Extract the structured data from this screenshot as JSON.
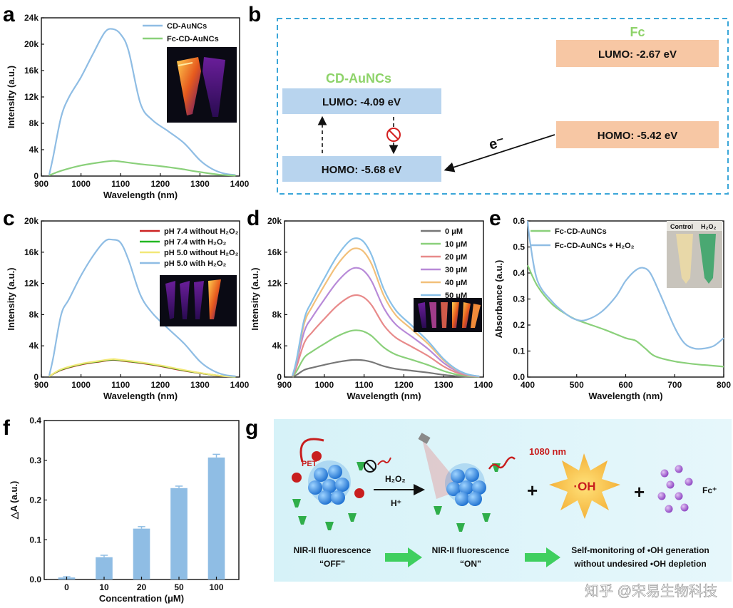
{
  "panel_labels": {
    "a": "a",
    "b": "b",
    "c": "c",
    "d": "d",
    "e": "e",
    "f": "f",
    "g": "g"
  },
  "colors": {
    "blue": "#8fbde4",
    "green": "#8ad07a",
    "red": "#cc2222",
    "brightgreen": "#22b822",
    "yellow": "#f2e878",
    "gray": "#777777",
    "salmon": "#e88a8a",
    "purple": "#b88ad8",
    "orange": "#f2c07a",
    "lightblue": "#88c0e8",
    "levelblue": "#b8d4ee",
    "levelorange": "#f7c7a4",
    "fcgreen": "#8ed36a",
    "arrowgreen": "#3fcf5f"
  },
  "chart_data": [
    {
      "id": "a",
      "type": "line",
      "xlabel": "Wavelength (nm)",
      "ylabel": "Intensity (a.u.)",
      "xlim": [
        900,
        1400
      ],
      "ylim": [
        0,
        24000
      ],
      "xticks": [
        900,
        1000,
        1100,
        1200,
        1300,
        1400
      ],
      "yticks": [
        0,
        4000,
        8000,
        12000,
        16000,
        20000,
        24000
      ],
      "ytick_labels": [
        "0",
        "4k",
        "8k",
        "12k",
        "16k",
        "20k",
        "24k"
      ],
      "series": [
        {
          "name": "CD-AuNCs",
          "color": "#8fbde4",
          "x": [
            920,
            930,
            950,
            970,
            1000,
            1030,
            1060,
            1080,
            1100,
            1120,
            1150,
            1180,
            1220,
            1260,
            1300,
            1330,
            1360,
            1390
          ],
          "y": [
            200,
            3000,
            9000,
            12000,
            15000,
            18500,
            21800,
            22300,
            21500,
            19000,
            11000,
            8500,
            6800,
            5000,
            2400,
            1100,
            400,
            150
          ]
        },
        {
          "name": "Fc-CD-AuNCs",
          "color": "#8ad07a",
          "x": [
            920,
            950,
            1000,
            1050,
            1080,
            1100,
            1150,
            1200,
            1250,
            1300,
            1350,
            1390
          ],
          "y": [
            100,
            800,
            1600,
            2100,
            2300,
            2200,
            1800,
            1500,
            1100,
            600,
            200,
            80
          ]
        }
      ]
    },
    {
      "id": "c",
      "type": "line",
      "xlabel": "Wavelength (nm)",
      "ylabel": "Intensity (a.u.)",
      "xlim": [
        900,
        1400
      ],
      "ylim": [
        0,
        20000
      ],
      "xticks": [
        900,
        1000,
        1100,
        1200,
        1300,
        1400
      ],
      "yticks": [
        0,
        4000,
        8000,
        12000,
        16000,
        20000
      ],
      "ytick_labels": [
        "0",
        "4k",
        "8k",
        "12k",
        "16k",
        "20k"
      ],
      "series": [
        {
          "name": "pH 7.4 without H₂O₂",
          "color": "#cc2222",
          "x": [
            920,
            950,
            1000,
            1050,
            1080,
            1100,
            1150,
            1200,
            1250,
            1300,
            1350,
            1390
          ],
          "y": [
            100,
            900,
            1600,
            2000,
            2200,
            2100,
            1800,
            1400,
            900,
            500,
            150,
            50
          ]
        },
        {
          "name": "pH 7.4 with H₂O₂",
          "color": "#22b822",
          "x": [
            920,
            950,
            1000,
            1050,
            1080,
            1100,
            1150,
            1200,
            1250,
            1300,
            1350,
            1390
          ],
          "y": [
            100,
            950,
            1650,
            2050,
            2250,
            2150,
            1850,
            1450,
            950,
            520,
            160,
            50
          ]
        },
        {
          "name": "pH 5.0 without H₂O₂",
          "color": "#f2e878",
          "x": [
            920,
            950,
            1000,
            1050,
            1080,
            1100,
            1150,
            1200,
            1250,
            1300,
            1350,
            1390
          ],
          "y": [
            100,
            1000,
            1700,
            2100,
            2300,
            2200,
            1900,
            1500,
            1000,
            540,
            170,
            50
          ]
        },
        {
          "name": "pH 5.0 with H₂O₂",
          "color": "#8fbde4",
          "x": [
            920,
            930,
            950,
            970,
            1000,
            1030,
            1060,
            1080,
            1100,
            1120,
            1150,
            1180,
            1220,
            1260,
            1300,
            1330,
            1360,
            1390
          ],
          "y": [
            200,
            2500,
            8000,
            10000,
            13000,
            15500,
            17400,
            17600,
            17200,
            15000,
            10500,
            8200,
            6200,
            4300,
            2000,
            900,
            300,
            100
          ]
        }
      ]
    },
    {
      "id": "d",
      "type": "line",
      "xlabel": "Wavelength (nm)",
      "ylabel": "Intensity (a.u.)",
      "xlim": [
        900,
        1400
      ],
      "ylim": [
        0,
        20000
      ],
      "xticks": [
        900,
        1000,
        1100,
        1200,
        1300,
        1400
      ],
      "yticks": [
        0,
        4000,
        8000,
        12000,
        16000,
        20000
      ],
      "ytick_labels": [
        "0",
        "4k",
        "8k",
        "12k",
        "16k",
        "20k"
      ],
      "series": [
        {
          "name": "0 μM",
          "color": "#777777",
          "peak": 2200
        },
        {
          "name": "10 μM",
          "color": "#8ad07a",
          "peak": 6000
        },
        {
          "name": "20 μM",
          "color": "#e88a8a",
          "peak": 10500
        },
        {
          "name": "30 μM",
          "color": "#b88ad8",
          "peak": 14000
        },
        {
          "name": "40 μM",
          "color": "#f2c07a",
          "peak": 16500
        },
        {
          "name": "50 μM",
          "color": "#88c0e8",
          "peak": 17800
        }
      ]
    },
    {
      "id": "e",
      "type": "line",
      "xlabel": "Wavelength (nm)",
      "ylabel": "Absorbance (a.u.)",
      "xlim": [
        400,
        800
      ],
      "ylim": [
        0,
        0.6
      ],
      "xticks": [
        400,
        500,
        600,
        700,
        800
      ],
      "yticks": [
        0,
        0.1,
        0.2,
        0.3,
        0.4,
        0.5,
        0.6
      ],
      "ytick_labels": [
        "0.0",
        "0.1",
        "0.2",
        "0.3",
        "0.4",
        "0.5",
        "0.6"
      ],
      "series": [
        {
          "name": "Fc-CD-AuNCs",
          "color": "#8ad07a",
          "x": [
            400,
            420,
            450,
            480,
            500,
            530,
            560,
            600,
            620,
            640,
            660,
            700,
            740,
            770,
            800
          ],
          "y": [
            0.43,
            0.35,
            0.28,
            0.24,
            0.22,
            0.2,
            0.18,
            0.15,
            0.14,
            0.11,
            0.08,
            0.06,
            0.05,
            0.045,
            0.04
          ]
        },
        {
          "name": "Fc-CD-AuNCs + H₂O₂",
          "color": "#8fbde4",
          "x": [
            400,
            405,
            420,
            450,
            480,
            500,
            520,
            550,
            580,
            600,
            620,
            635,
            650,
            670,
            700,
            720,
            740,
            760,
            780,
            800
          ],
          "y": [
            0.6,
            0.52,
            0.37,
            0.29,
            0.24,
            0.22,
            0.22,
            0.25,
            0.31,
            0.37,
            0.41,
            0.42,
            0.4,
            0.32,
            0.19,
            0.13,
            0.11,
            0.11,
            0.12,
            0.15
          ]
        }
      ]
    },
    {
      "id": "f",
      "type": "bar",
      "xlabel": "Concentration (μM)",
      "ylabel": "△A (a.u.)",
      "ylim": [
        0,
        0.4
      ],
      "yticks": [
        0,
        0.1,
        0.2,
        0.3,
        0.4
      ],
      "ytick_labels": [
        "0.0",
        "0.1",
        "0.2",
        "0.3",
        "0.4"
      ],
      "categories": [
        "0",
        "10",
        "20",
        "50",
        "100"
      ],
      "values": [
        0.005,
        0.056,
        0.128,
        0.23,
        0.307
      ],
      "errors": [
        0.002,
        0.005,
        0.005,
        0.005,
        0.008
      ],
      "color": "#8fbde4"
    }
  ],
  "panel_b": {
    "cd_title": "CD-AuNCs",
    "fc_title": "Fc",
    "cd_lumo": "LUMO: -4.09 eV",
    "cd_homo": "HOMO: -5.68 eV",
    "fc_lumo": "LUMO: -2.67 eV",
    "fc_homo": "HOMO: -5.42 eV",
    "electron": "e⁻"
  },
  "inset_e": {
    "control": "Control",
    "h2o2": "H₂O₂"
  },
  "panel_g": {
    "pet": "PET",
    "h2o2": "H₂O₂",
    "hplus": "H⁺",
    "nm1080": "1080 nm",
    "oh": "·OH",
    "fc": "Fc⁺",
    "plus": "+",
    "off_line1": "NIR-II fluorescence",
    "off_line2": "“OFF”",
    "on_line1": "NIR-II fluorescence",
    "on_line2": "“ON”",
    "self_line1": "Self-monitoring of •OH generation",
    "self_line2": "without undesired •OH depletion"
  },
  "watermark": "知乎 @宋易生物科技"
}
